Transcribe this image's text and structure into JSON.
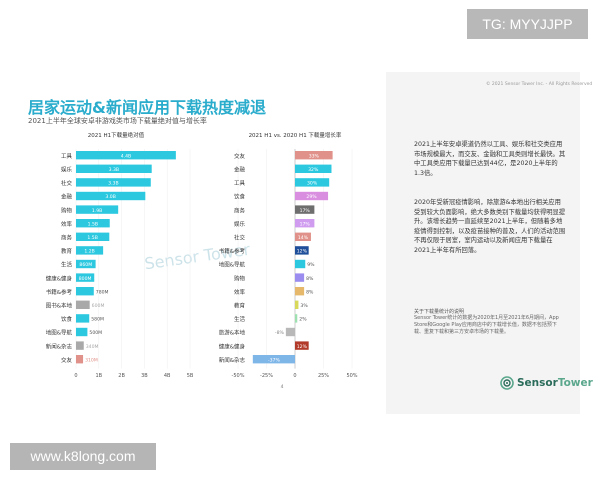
{
  "watermarks": {
    "top": "TG: MYYJJPP",
    "bottom": "www.k8long.com"
  },
  "slide": {
    "title": "居家运动&新闻应用下载热度减退",
    "subtitle": "2021上半年全球安卓非游戏类市场下载量绝对值与增长率",
    "right_panel": {
      "header": "© 2021 Sensor Tower Inc. - All Rights Reserved",
      "para1": "2021上半年安卓渠道仍然以工具、娱乐和社交类应用市场规模最大，而交友、金融和工具类则增长最快。其中工具类应用下载量已达到44亿，是2020上半年的1.3倍。",
      "para2": "2020年受新冠疫情影响，除旅游&本地出行相关应用受到较大负面影响，绝大多数类别下载量均获得明显提升。该增长趋势一直延续至2021上半年，但随着多地疫情得到控制，以及疫苗接种的普及，人们的活动范围不再仅限于居室，室内运动以及新闻应用下载量在2021上半年有所回落。",
      "notes_title": "关于下载量统计的说明",
      "notes": "Sensor Tower统计的数据为2020年1月至2021年6月期间，App Store和Google Play应用商店中的下载增长值，数据不包括预下载、重复下载和第三方安卓市场的下载量。",
      "logo": {
        "part1": "Sensor",
        "part2": "Tower"
      }
    },
    "center_watermark": "Sensor Tower",
    "page_number": "4"
  },
  "colors": {
    "title": "#2aaccc",
    "positive": "#2bc8e0",
    "negative": "#e0928a",
    "gray": "#a9a9a9"
  },
  "chart_data": [
    {
      "type": "bar",
      "orientation": "horizontal",
      "title": "2021 H1下载量绝对值",
      "categories": [
        "工具",
        "娱乐",
        "社交",
        "金融",
        "购物",
        "效率",
        "商务",
        "教育",
        "生活",
        "健康&健身",
        "书籍&参考",
        "图书&本地",
        "饮食",
        "地图&导航",
        "新闻&杂志",
        "交友"
      ],
      "values": [
        4.38,
        3.32,
        3.28,
        3.04,
        1.85,
        1.48,
        1.46,
        1.19,
        0.86,
        0.8,
        0.78,
        0.6,
        0.58,
        0.5,
        0.34,
        0.31
      ],
      "labels": [
        "4.4B",
        "3.3B",
        "3.3B",
        "3.0B",
        "1.9B",
        "1.5B",
        "1.5B",
        "1.2B",
        "860M",
        "800M",
        "780M",
        "600M",
        "580M",
        "500M",
        "340M",
        "310M"
      ],
      "bar_colors": [
        "positive",
        "positive",
        "positive",
        "positive",
        "positive",
        "positive",
        "positive",
        "positive",
        "positive",
        "positive",
        "positive",
        "gray",
        "positive",
        "positive",
        "gray",
        "negative"
      ],
      "xticks": [
        "0",
        "1B",
        "2B",
        "3B",
        "4B",
        "5B"
      ],
      "xlim": [
        0,
        5
      ]
    },
    {
      "type": "bar",
      "orientation": "horizontal",
      "title": "2021 H1 vs. 2020 H1 下载量增长率",
      "categories": [
        "交友",
        "金融",
        "工具",
        "饮食",
        "商务",
        "娱乐",
        "社交",
        "书籍&参考",
        "地图&导航",
        "购物",
        "效率",
        "教育",
        "生活",
        "旅游&本地",
        "健康&健身",
        "新闻&杂志"
      ],
      "values": [
        33,
        32,
        30,
        29,
        17,
        17,
        14,
        12,
        9,
        8,
        8,
        3,
        2,
        -8,
        12,
        -37
      ],
      "labels": [
        "33%",
        "32%",
        "30%",
        "29%",
        "17%",
        "17%",
        "14%",
        "12%",
        "9%",
        "8%",
        "8%",
        "3%",
        "2%",
        "-8%",
        "12%",
        "-37%"
      ],
      "bar_colors": [
        "#e0928a",
        "#2bc8e0",
        "#2bc8e0",
        "#d98ee0",
        "#6e6e6e",
        "#cf9cf0",
        "#e0928a",
        "#1f4f9a",
        "#2bc8e0",
        "#9b8cf0",
        "#e6b86b",
        "#d8d85a",
        "#9ee0b0",
        "#b8b8b8",
        "#b23a2a",
        "#7fb6e8"
      ],
      "xticks": [
        "-50%",
        "-25%",
        "0",
        "25%",
        "50%"
      ],
      "xlim": [
        -50,
        50
      ]
    }
  ]
}
